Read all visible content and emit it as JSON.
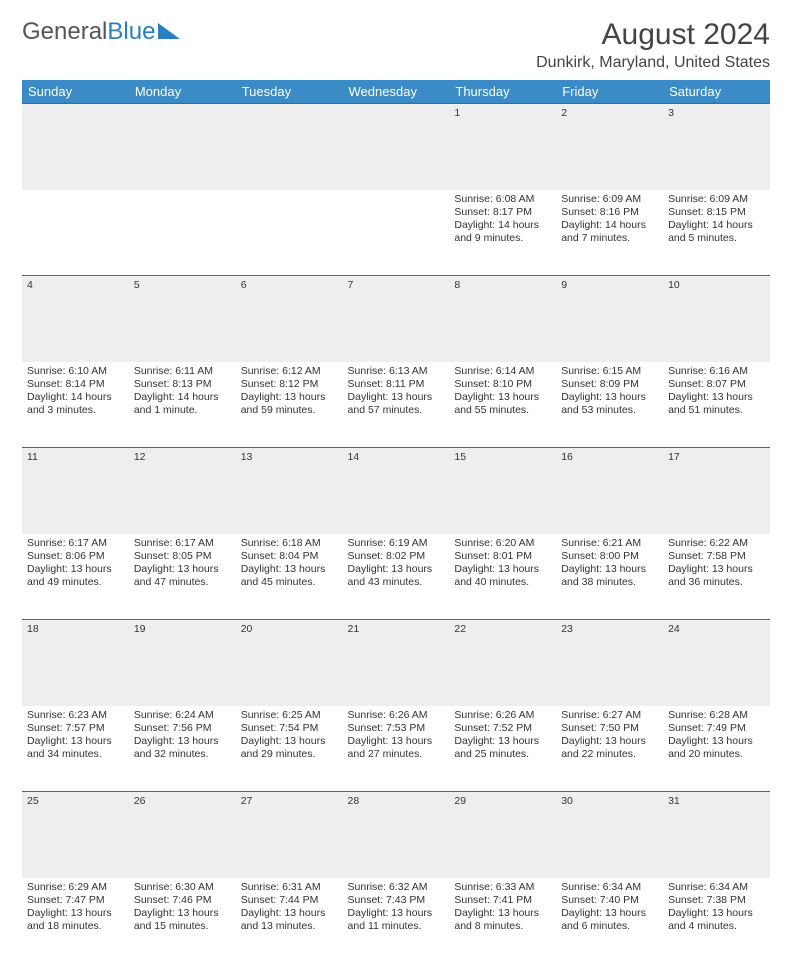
{
  "logo": {
    "part1": "General",
    "part2": "Blue"
  },
  "title": "August 2024",
  "location": "Dunkirk, Maryland, United States",
  "colors": {
    "header_bg": "#3b8bc6",
    "divider": "#2a6fa5",
    "daynum_bg": "#eeeeee",
    "logo_blue": "#2a7fbf"
  },
  "day_headers": [
    "Sunday",
    "Monday",
    "Tuesday",
    "Wednesday",
    "Thursday",
    "Friday",
    "Saturday"
  ],
  "weeks": [
    [
      null,
      null,
      null,
      null,
      {
        "n": "1",
        "sr": "6:08 AM",
        "ss": "8:17 PM",
        "dl": "14 hours and 9 minutes."
      },
      {
        "n": "2",
        "sr": "6:09 AM",
        "ss": "8:16 PM",
        "dl": "14 hours and 7 minutes."
      },
      {
        "n": "3",
        "sr": "6:09 AM",
        "ss": "8:15 PM",
        "dl": "14 hours and 5 minutes."
      }
    ],
    [
      {
        "n": "4",
        "sr": "6:10 AM",
        "ss": "8:14 PM",
        "dl": "14 hours and 3 minutes."
      },
      {
        "n": "5",
        "sr": "6:11 AM",
        "ss": "8:13 PM",
        "dl": "14 hours and 1 minute."
      },
      {
        "n": "6",
        "sr": "6:12 AM",
        "ss": "8:12 PM",
        "dl": "13 hours and 59 minutes."
      },
      {
        "n": "7",
        "sr": "6:13 AM",
        "ss": "8:11 PM",
        "dl": "13 hours and 57 minutes."
      },
      {
        "n": "8",
        "sr": "6:14 AM",
        "ss": "8:10 PM",
        "dl": "13 hours and 55 minutes."
      },
      {
        "n": "9",
        "sr": "6:15 AM",
        "ss": "8:09 PM",
        "dl": "13 hours and 53 minutes."
      },
      {
        "n": "10",
        "sr": "6:16 AM",
        "ss": "8:07 PM",
        "dl": "13 hours and 51 minutes."
      }
    ],
    [
      {
        "n": "11",
        "sr": "6:17 AM",
        "ss": "8:06 PM",
        "dl": "13 hours and 49 minutes."
      },
      {
        "n": "12",
        "sr": "6:17 AM",
        "ss": "8:05 PM",
        "dl": "13 hours and 47 minutes."
      },
      {
        "n": "13",
        "sr": "6:18 AM",
        "ss": "8:04 PM",
        "dl": "13 hours and 45 minutes."
      },
      {
        "n": "14",
        "sr": "6:19 AM",
        "ss": "8:02 PM",
        "dl": "13 hours and 43 minutes."
      },
      {
        "n": "15",
        "sr": "6:20 AM",
        "ss": "8:01 PM",
        "dl": "13 hours and 40 minutes."
      },
      {
        "n": "16",
        "sr": "6:21 AM",
        "ss": "8:00 PM",
        "dl": "13 hours and 38 minutes."
      },
      {
        "n": "17",
        "sr": "6:22 AM",
        "ss": "7:58 PM",
        "dl": "13 hours and 36 minutes."
      }
    ],
    [
      {
        "n": "18",
        "sr": "6:23 AM",
        "ss": "7:57 PM",
        "dl": "13 hours and 34 minutes."
      },
      {
        "n": "19",
        "sr": "6:24 AM",
        "ss": "7:56 PM",
        "dl": "13 hours and 32 minutes."
      },
      {
        "n": "20",
        "sr": "6:25 AM",
        "ss": "7:54 PM",
        "dl": "13 hours and 29 minutes."
      },
      {
        "n": "21",
        "sr": "6:26 AM",
        "ss": "7:53 PM",
        "dl": "13 hours and 27 minutes."
      },
      {
        "n": "22",
        "sr": "6:26 AM",
        "ss": "7:52 PM",
        "dl": "13 hours and 25 minutes."
      },
      {
        "n": "23",
        "sr": "6:27 AM",
        "ss": "7:50 PM",
        "dl": "13 hours and 22 minutes."
      },
      {
        "n": "24",
        "sr": "6:28 AM",
        "ss": "7:49 PM",
        "dl": "13 hours and 20 minutes."
      }
    ],
    [
      {
        "n": "25",
        "sr": "6:29 AM",
        "ss": "7:47 PM",
        "dl": "13 hours and 18 minutes."
      },
      {
        "n": "26",
        "sr": "6:30 AM",
        "ss": "7:46 PM",
        "dl": "13 hours and 15 minutes."
      },
      {
        "n": "27",
        "sr": "6:31 AM",
        "ss": "7:44 PM",
        "dl": "13 hours and 13 minutes."
      },
      {
        "n": "28",
        "sr": "6:32 AM",
        "ss": "7:43 PM",
        "dl": "13 hours and 11 minutes."
      },
      {
        "n": "29",
        "sr": "6:33 AM",
        "ss": "7:41 PM",
        "dl": "13 hours and 8 minutes."
      },
      {
        "n": "30",
        "sr": "6:34 AM",
        "ss": "7:40 PM",
        "dl": "13 hours and 6 minutes."
      },
      {
        "n": "31",
        "sr": "6:34 AM",
        "ss": "7:38 PM",
        "dl": "13 hours and 4 minutes."
      }
    ]
  ],
  "labels": {
    "sunrise": "Sunrise: ",
    "sunset": "Sunset: ",
    "daylight": "Daylight: "
  }
}
